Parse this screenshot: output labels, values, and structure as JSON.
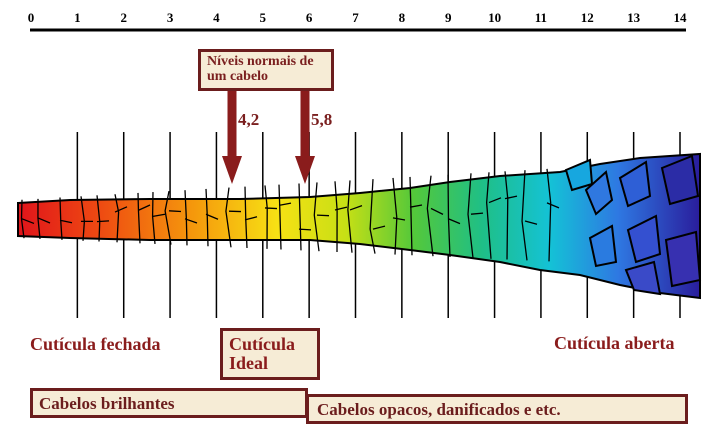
{
  "scale": {
    "ticks": [
      "0",
      "1",
      "2",
      "3",
      "4",
      "5",
      "6",
      "7",
      "8",
      "9",
      "10",
      "11",
      "12",
      "13",
      "14"
    ]
  },
  "callout": {
    "text_line1": "Níveis normais de",
    "text_line2": "um cabelo",
    "marker_low": "4,2",
    "marker_high": "5,8"
  },
  "labels": {
    "closed": "Cutícula fechada",
    "ideal_line1": "Cutícula",
    "ideal_line2": "Ideal",
    "open": "Cutícula aberta"
  },
  "bars": {
    "shiny": "Cabelos brilhantes",
    "dull": "Cabelos opacos, danificados e etc."
  },
  "colors": {
    "accent": "#7a1f1f",
    "box_border": "#6b1d1d",
    "box_fill": "#f6ecd6",
    "arrow": "#8a1c1c"
  }
}
